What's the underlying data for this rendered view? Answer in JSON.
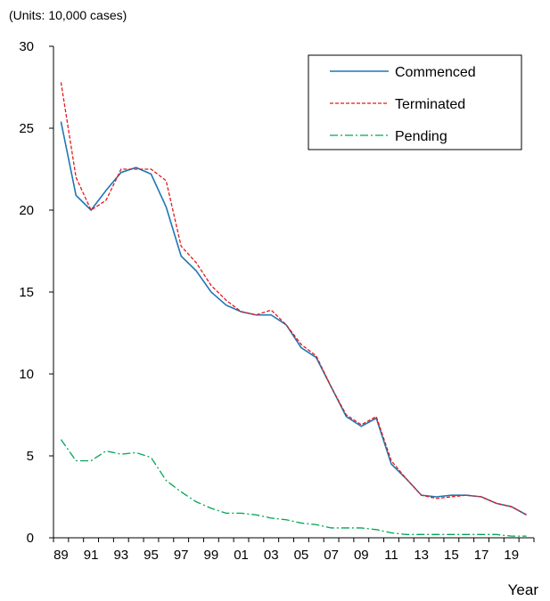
{
  "chart_data": {
    "type": "line",
    "units_label": "(Units: 10,000 cases)",
    "xlabel": "Year",
    "ylabel": "",
    "ylim": [
      0,
      30
    ],
    "yticks": [
      0,
      5,
      10,
      15,
      20,
      25,
      30
    ],
    "x": [
      "89",
      "90",
      "91",
      "92",
      "93",
      "94",
      "95",
      "96",
      "97",
      "98",
      "99",
      "00",
      "01",
      "02",
      "03",
      "04",
      "05",
      "06",
      "07",
      "08",
      "09",
      "10",
      "11",
      "12",
      "13",
      "14",
      "15",
      "16",
      "17",
      "18",
      "19",
      "20"
    ],
    "x_tick_labels": [
      "89",
      "91",
      "93",
      "95",
      "97",
      "99",
      "01",
      "03",
      "05",
      "07",
      "09",
      "11",
      "13",
      "15",
      "17",
      "19"
    ],
    "grid": false,
    "legend_position": "top-right",
    "series": [
      {
        "name": "Commenced",
        "color": "#1f77b4",
        "style": "solid",
        "values": [
          25.4,
          20.9,
          20.0,
          21.2,
          22.3,
          22.6,
          22.2,
          20.2,
          17.2,
          16.3,
          15.0,
          14.2,
          13.8,
          13.6,
          13.6,
          13.0,
          11.6,
          11.0,
          9.2,
          7.4,
          6.8,
          7.3,
          4.5,
          3.6,
          2.6,
          2.5,
          2.6,
          2.6,
          2.5,
          2.1,
          1.9,
          1.4
        ]
      },
      {
        "name": "Terminated",
        "color": "#e31a1c",
        "style": "dashed",
        "values": [
          27.8,
          22.0,
          20.0,
          20.6,
          22.5,
          22.5,
          22.5,
          21.8,
          17.8,
          16.8,
          15.4,
          14.5,
          13.8,
          13.6,
          13.9,
          13.0,
          11.8,
          11.1,
          9.2,
          7.5,
          6.9,
          7.4,
          4.7,
          3.6,
          2.6,
          2.4,
          2.5,
          2.6,
          2.5,
          2.1,
          1.9,
          1.4
        ]
      },
      {
        "name": "Pending",
        "color": "#00a651",
        "style": "dashdot",
        "values": [
          6.0,
          4.7,
          4.7,
          5.3,
          5.1,
          5.2,
          4.9,
          3.5,
          2.8,
          2.2,
          1.8,
          1.5,
          1.5,
          1.4,
          1.2,
          1.1,
          0.9,
          0.8,
          0.6,
          0.6,
          0.6,
          0.5,
          0.3,
          0.2,
          0.2,
          0.2,
          0.2,
          0.2,
          0.2,
          0.2,
          0.1,
          0.1
        ]
      }
    ]
  }
}
